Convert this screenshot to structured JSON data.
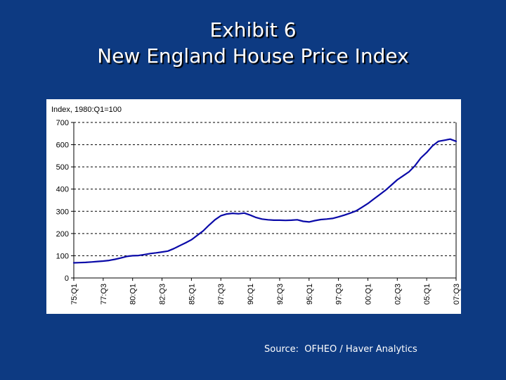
{
  "slide": {
    "title_line1": "Exhibit 6",
    "title_line2": "New England House Price Index",
    "source": "Source:  OFHEO / Haver Analytics"
  },
  "colors": {
    "background": "#0d3a82",
    "series_line": "#0a0aa8",
    "chart_background": "#ffffff",
    "gridline": "#000000"
  },
  "chart_data": {
    "type": "line",
    "title": "",
    "ylabel": "Index, 1980:Q1=100",
    "xlabel": "",
    "ylim": [
      0,
      700
    ],
    "yticks": [
      0,
      100,
      200,
      300,
      400,
      500,
      600,
      700
    ],
    "grid": "horizontal dashed",
    "legend": "none",
    "x_tick_labels": [
      "75:Q1",
      "77:Q3",
      "80:Q1",
      "82:Q3",
      "85:Q1",
      "87:Q3",
      "90:Q1",
      "92:Q3",
      "95:Q1",
      "97:Q3",
      "00:Q1",
      "02:Q3",
      "05:Q1",
      "07:Q3"
    ],
    "x_range": [
      "1975:Q1",
      "2007:Q3"
    ],
    "series": [
      {
        "points": [
          [
            "1975:Q1",
            68
          ],
          [
            "1975:Q3",
            69
          ],
          [
            "1976:Q1",
            70
          ],
          [
            "1976:Q3",
            72
          ],
          [
            "1977:Q1",
            74
          ],
          [
            "1977:Q3",
            76
          ],
          [
            "1978:Q1",
            79
          ],
          [
            "1978:Q3",
            84
          ],
          [
            "1979:Q1",
            90
          ],
          [
            "1979:Q3",
            97
          ],
          [
            "1980:Q1",
            100
          ],
          [
            "1980:Q3",
            101
          ],
          [
            "1981:Q1",
            105
          ],
          [
            "1981:Q3",
            110
          ],
          [
            "1982:Q1",
            113
          ],
          [
            "1982:Q3",
            117
          ],
          [
            "1983:Q1",
            121
          ],
          [
            "1983:Q3",
            132
          ],
          [
            "1984:Q1",
            145
          ],
          [
            "1984:Q3",
            158
          ],
          [
            "1985:Q1",
            172
          ],
          [
            "1985:Q3",
            192
          ],
          [
            "1986:Q1",
            212
          ],
          [
            "1986:Q3",
            238
          ],
          [
            "1987:Q1",
            262
          ],
          [
            "1987:Q3",
            280
          ],
          [
            "1988:Q1",
            288
          ],
          [
            "1988:Q3",
            291
          ],
          [
            "1989:Q1",
            289
          ],
          [
            "1989:Q3",
            292
          ],
          [
            "1990:Q1",
            283
          ],
          [
            "1990:Q3",
            272
          ],
          [
            "1991:Q1",
            265
          ],
          [
            "1991:Q3",
            262
          ],
          [
            "1992:Q1",
            260
          ],
          [
            "1992:Q3",
            260
          ],
          [
            "1993:Q1",
            259
          ],
          [
            "1993:Q3",
            260
          ],
          [
            "1994:Q1",
            262
          ],
          [
            "1994:Q3",
            255
          ],
          [
            "1995:Q1",
            252
          ],
          [
            "1995:Q3",
            258
          ],
          [
            "1996:Q1",
            263
          ],
          [
            "1996:Q3",
            265
          ],
          [
            "1997:Q1",
            268
          ],
          [
            "1997:Q3",
            275
          ],
          [
            "1998:Q1",
            283
          ],
          [
            "1998:Q3",
            292
          ],
          [
            "1999:Q1",
            302
          ],
          [
            "1999:Q3",
            318
          ],
          [
            "2000:Q1",
            335
          ],
          [
            "2000:Q3",
            355
          ],
          [
            "2001:Q1",
            375
          ],
          [
            "2001:Q3",
            395
          ],
          [
            "2002:Q1",
            418
          ],
          [
            "2002:Q3",
            442
          ],
          [
            "2003:Q1",
            460
          ],
          [
            "2003:Q3",
            478
          ],
          [
            "2004:Q1",
            505
          ],
          [
            "2004:Q3",
            540
          ],
          [
            "2005:Q1",
            565
          ],
          [
            "2005:Q3",
            595
          ],
          [
            "2006:Q1",
            615
          ],
          [
            "2006:Q3",
            620
          ],
          [
            "2007:Q1",
            625
          ],
          [
            "2007:Q3",
            615
          ]
        ]
      }
    ]
  }
}
